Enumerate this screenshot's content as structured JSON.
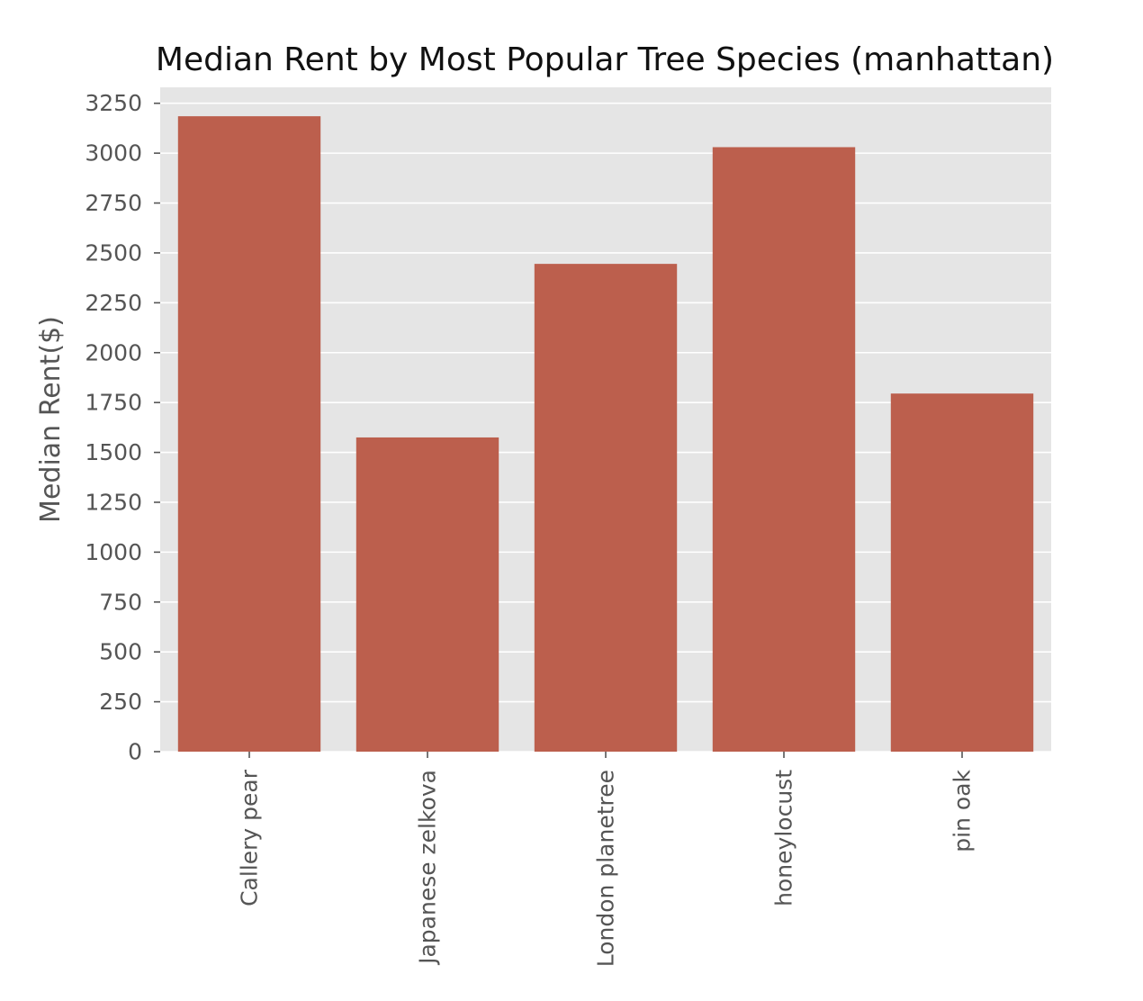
{
  "chart_data": {
    "type": "bar",
    "title": "Median Rent by Most Popular Tree Species (manhattan)",
    "xlabel": "",
    "ylabel": "Median Rent($)",
    "categories": [
      "Callery pear",
      "Japanese zelkova",
      "London planetree",
      "honeylocust",
      "pin oak"
    ],
    "values": [
      3185,
      1575,
      2445,
      3030,
      1795
    ],
    "ylim": [
      0,
      3330
    ],
    "yticks": [
      0,
      250,
      500,
      750,
      1000,
      1250,
      1500,
      1750,
      2000,
      2250,
      2500,
      2750,
      3000,
      3250
    ],
    "grid": true,
    "legend": "none",
    "colors": {
      "bar": "#bc5f4d",
      "plot_background": "#e5e5e5",
      "grid": "#ffffff",
      "tick_text": "#555555",
      "title_text": "#111111"
    }
  }
}
